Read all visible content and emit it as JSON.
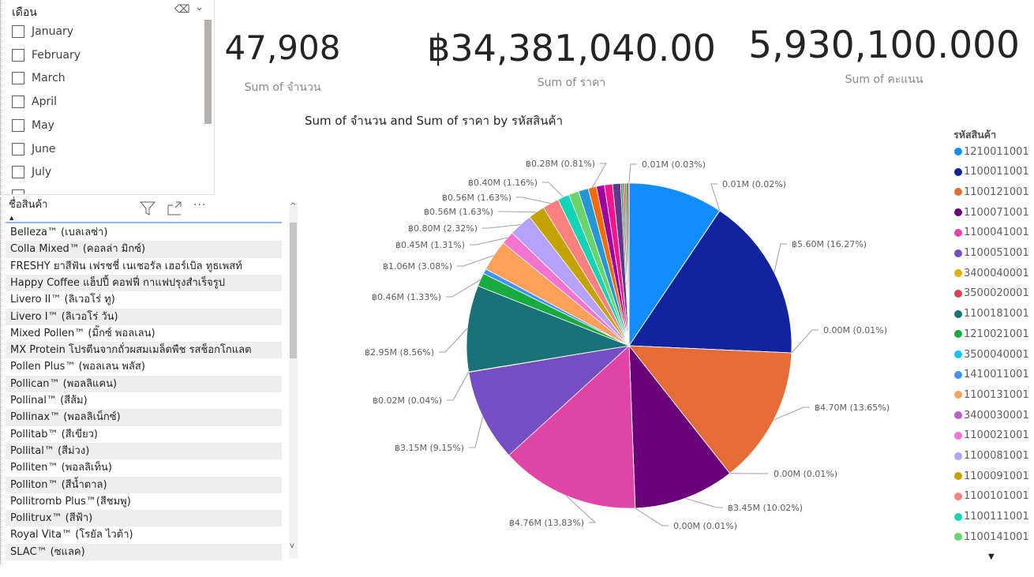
{
  "slicer": {
    "title": "เดือน",
    "items": [
      "January",
      "February",
      "March",
      "April",
      "May",
      "June",
      "July"
    ]
  },
  "table": {
    "header": "ชื่อสินค้า",
    "rows": [
      "Belleza™ (เบลเลซ่า)",
      "Colla Mixed™ (คอลล่า มิกซ์)",
      "FRESHY ยาสีฟัน เฟรชชี่ เนเชอรัล เฮอร์เบิล ทูธเพสท์",
      "Happy Coffee แฮ็ปปี้ คอฟฟี่ กาแฟปรุงสำเร็จรูป",
      "Livero II™ (ลิเวอโร่ ทู)",
      "Livero I™ (ลิเวอโร่ วัน)",
      "Mixed Pollen™ (มิ็กซ์ พอลเลน)",
      "MX Protein โปรตีนจากถั่วผสมเมล็ดพืช รสช็อกโกแลต",
      "Pollen Plus™ (พอลเลน พลัส)",
      "Pollican™ (พอลลิแคน)",
      "Pollinal™ (สีส้ม)",
      "Pollinax™ (พอลลิเน็กซ์)",
      "Pollitab™ (สีเขียว)",
      "Pollital™ (สีม่วง)",
      "Polliten™ (พอลลิเท็น)",
      "Polliton™ (สีน้ำตาล)",
      "Pollitromb Plus™(สีชมพู)",
      "Pollitrux™ (สีฟ้า)",
      "Royal Vita™ (โรยัล ไวต้า)",
      "SLAC™ (ซแลค)"
    ]
  },
  "cards": [
    {
      "value": "47,908",
      "label": "Sum of จำนวน"
    },
    {
      "value": "฿34,381,040.00",
      "label": "Sum of ราคา"
    },
    {
      "value": "5,930,100.000",
      "label": "Sum of คะแนน"
    }
  ],
  "chart_data": {
    "type": "pie",
    "title": "Sum of จำนวน and Sum of ราคา by รหัสสินค้า",
    "legend_title": "รหัสสินค้า",
    "legend_placement": "right",
    "legend": [
      {
        "name": "1210011001",
        "color": "#118DFF"
      },
      {
        "name": "1100011001",
        "color": "#12239E"
      },
      {
        "name": "1100121001",
        "color": "#E66C37"
      },
      {
        "name": "1100071001",
        "color": "#6B007B"
      },
      {
        "name": "1100041001",
        "color": "#E044A7"
      },
      {
        "name": "1100051001",
        "color": "#744EC2"
      },
      {
        "name": "3400040001",
        "color": "#D9B300"
      },
      {
        "name": "3500020001",
        "color": "#D64550"
      },
      {
        "name": "1100181001",
        "color": "#197278"
      },
      {
        "name": "1210021001",
        "color": "#1AAB40"
      },
      {
        "name": "3500040001",
        "color": "#15C6F4"
      },
      {
        "name": "1410011001",
        "color": "#4092FF"
      },
      {
        "name": "1100131001",
        "color": "#FFA058"
      },
      {
        "name": "3400030001",
        "color": "#BE5DC9"
      },
      {
        "name": "1100021001",
        "color": "#F472D0"
      },
      {
        "name": "1100081001",
        "color": "#B5A1FF"
      },
      {
        "name": "1100091001",
        "color": "#C4A200"
      },
      {
        "name": "1100101001",
        "color": "#FD8080"
      },
      {
        "name": "1100111001",
        "color": "#13D5B5"
      },
      {
        "name": "1100141001",
        "color": "#6AD46A"
      }
    ],
    "slices": [
      {
        "pct": 9.4,
        "color": "#118DFF",
        "label": ""
      },
      {
        "pct": 0.02,
        "color": "#999999",
        "label": "0.01M (0.02%)"
      },
      {
        "pct": 16.27,
        "color": "#12239E",
        "label": "฿5.60M (16.27%)"
      },
      {
        "pct": 0.01,
        "color": "#999999",
        "label": "0.00M (0.01%)"
      },
      {
        "pct": 13.65,
        "color": "#E66C37",
        "label": "฿4.70M (13.65%)"
      },
      {
        "pct": 0.01,
        "color": "#999999",
        "label": "0.00M (0.01%)"
      },
      {
        "pct": 10.02,
        "color": "#6B007B",
        "label": "฿3.45M (10.02%)"
      },
      {
        "pct": 0.01,
        "color": "#999999",
        "label": "0.00M (0.01%)"
      },
      {
        "pct": 13.83,
        "color": "#E044A7",
        "label": "฿4.76M (13.83%)"
      },
      {
        "pct": 9.15,
        "color": "#744EC2",
        "label": "฿3.15M (9.15%)"
      },
      {
        "pct": 0.04,
        "color": "#999999",
        "label": "฿0.02M (0.04%)"
      },
      {
        "pct": 8.56,
        "color": "#197278",
        "label": "฿2.95M (8.56%)"
      },
      {
        "pct": 1.33,
        "color": "#1AAB40",
        "label": "฿0.46M (1.33%)"
      },
      {
        "pct": 0.5,
        "color": "#4092FF",
        "label": ""
      },
      {
        "pct": 3.08,
        "color": "#FFA058",
        "label": "฿1.06M (3.08%)"
      },
      {
        "pct": 1.31,
        "color": "#F472D0",
        "label": "฿0.45M (1.31%)"
      },
      {
        "pct": 2.32,
        "color": "#B5A1FF",
        "label": "฿0.80M (2.32%)"
      },
      {
        "pct": 1.63,
        "color": "#C4A200",
        "label": "฿0.56M (1.63%)"
      },
      {
        "pct": 1.63,
        "color": "#FD8080",
        "label": "฿0.56M (1.63%)"
      },
      {
        "pct": 1.16,
        "color": "#13D5B5",
        "label": "฿0.40M (1.16%)"
      },
      {
        "pct": 1.0,
        "color": "#6AD46A",
        "label": ""
      },
      {
        "pct": 1.0,
        "color": "#2596D8",
        "label": ""
      },
      {
        "pct": 0.81,
        "color": "#FF6A00",
        "label": "฿0.28M (0.81%)"
      },
      {
        "pct": 0.8,
        "color": "#A0009F",
        "label": ""
      },
      {
        "pct": 0.8,
        "color": "#F5148C",
        "label": ""
      },
      {
        "pct": 0.8,
        "color": "#5E3B8A",
        "label": ""
      },
      {
        "pct": 0.2,
        "color": "#2E8B57",
        "label": ""
      },
      {
        "pct": 0.2,
        "color": "#E04060",
        "label": ""
      },
      {
        "pct": 0.2,
        "color": "#1AAB40",
        "label": ""
      },
      {
        "pct": 0.2,
        "color": "#A52A2A",
        "label": ""
      },
      {
        "pct": 0.03,
        "color": "#404040",
        "label": "0.01M (0.03%)"
      }
    ]
  }
}
